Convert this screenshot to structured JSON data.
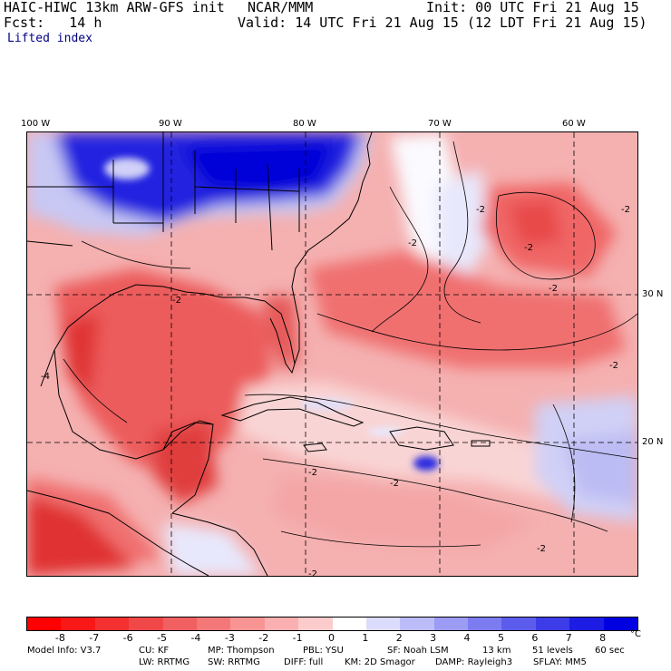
{
  "header": {
    "model": "HAIC-HIWC 13km ARW-GFS init",
    "org": "NCAR/MMM",
    "init": "Init: 00 UTC Fri 21 Aug 15",
    "fcst": "Fcst:   14 h",
    "valid": "Valid: 14 UTC Fri 21 Aug 15 (12 LDT Fri 21 Aug 15)",
    "field": "Lifted index"
  },
  "map": {
    "lon_labels": [
      "100 W",
      "90 W",
      "80 W",
      "70 W",
      "60 W"
    ],
    "lat_labels": [
      "30 N",
      "20 N"
    ],
    "contour_labels": [
      "-2",
      "-2",
      "-2",
      "-2",
      "-2",
      "-4",
      "-2",
      "-2",
      "-2",
      "-2",
      "-2",
      "-2"
    ],
    "colors": {
      "strong_neg": "#ff2020",
      "neg": "#f06060",
      "weak_neg": "#f8b0b0",
      "pos": "#c8c8f8",
      "strong_pos": "#1010e0"
    }
  },
  "colorbar": {
    "labels": [
      "-8",
      "-7",
      "-6",
      "-5",
      "-4",
      "-3",
      "-2",
      "-1",
      "0",
      "1",
      "2",
      "3",
      "4",
      "5",
      "6",
      "7",
      "8"
    ],
    "unit": "°C",
    "colors": [
      "#ff0000",
      "#f81818",
      "#f43030",
      "#f04848",
      "#f06060",
      "#f47878",
      "#f89494",
      "#fab0b0",
      "#fccccc",
      "#ffffff",
      "#dcdcfc",
      "#bcbcf8",
      "#9c9cf4",
      "#7c7cf0",
      "#5c5cec",
      "#3c3ce8",
      "#1c1ce4",
      "#0000e0"
    ]
  },
  "footer": {
    "line1": [
      "Model Info: V3.7",
      "CU: KF",
      "MP: Thompson",
      "PBL: YSU",
      "SF: Noah LSM",
      "13 km",
      "51 levels",
      "60 sec"
    ],
    "line2": [
      "LW: RRTMG",
      "SW: RRTMG",
      "DIFF: full",
      "KM: 2D Smagor",
      "DAMP: Rayleigh3",
      "SFLAY: MM5"
    ]
  }
}
